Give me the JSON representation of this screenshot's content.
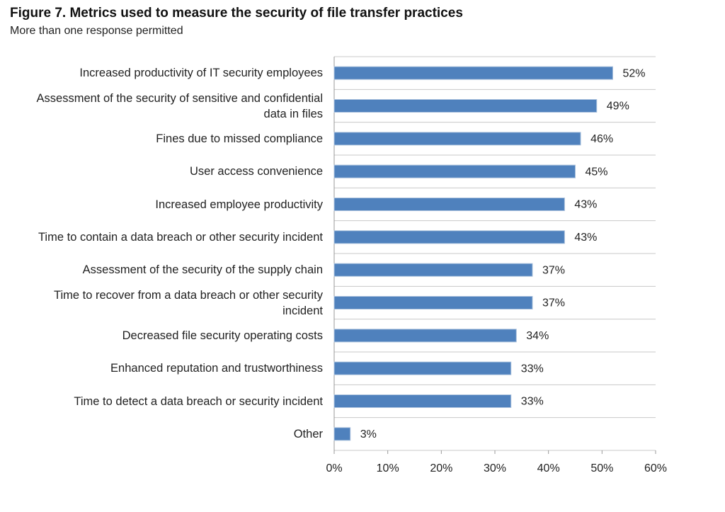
{
  "chart_data": {
    "type": "hbar",
    "title": "Figure 7. Metrics used to measure the security of file transfer practices",
    "subtitle": "More than one response permitted",
    "categories": [
      "Increased productivity of IT security employees",
      "Assessment of the security of sensitive and confidential data in files",
      "Fines due to missed compliance",
      "User access convenience",
      "Increased employee productivity",
      "Time to contain a data breach or other security incident",
      "Assessment of the security of the supply chain",
      "Time to recover from a data breach or other security incident",
      "Decreased file security operating costs",
      "Enhanced reputation and trustworthiness",
      "Time to detect a data breach or security incident",
      "Other"
    ],
    "values": [
      52,
      49,
      46,
      45,
      43,
      43,
      37,
      37,
      34,
      33,
      33,
      3
    ],
    "value_labels": [
      "52%",
      "49%",
      "46%",
      "45%",
      "43%",
      "43%",
      "37%",
      "37%",
      "34%",
      "33%",
      "33%",
      "3%"
    ],
    "color": "#4f81bd",
    "xlim": [
      0,
      60
    ],
    "xticks": [
      {
        "value": 0,
        "label": "0%"
      },
      {
        "value": 10,
        "label": "10%"
      },
      {
        "value": 20,
        "label": "20%"
      },
      {
        "value": 30,
        "label": "30%"
      },
      {
        "value": 40,
        "label": "40%"
      },
      {
        "value": 50,
        "label": "50%"
      },
      {
        "value": 60,
        "label": "60%"
      }
    ],
    "grid": false
  }
}
